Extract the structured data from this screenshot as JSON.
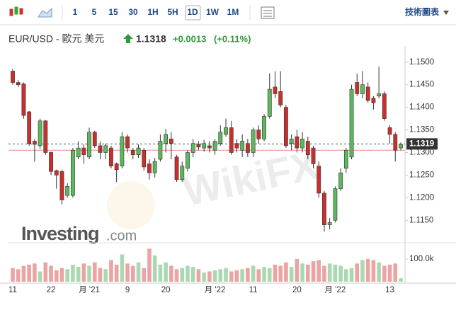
{
  "toolbar": {
    "intervals": [
      "1",
      "5",
      "15",
      "30",
      "1H",
      "5H",
      "1D",
      "1W",
      "1M"
    ],
    "selected": "1D",
    "right": "技術圖表"
  },
  "header": {
    "symbol": "EUR/USD - 歐元 美元",
    "price": "1.1318",
    "change": "+0.0013",
    "change_pct": "(+0.11%)"
  },
  "watermarks": {
    "logo": "Investing",
    "logo_suffix": ".com",
    "wikifx": "WikiFX"
  },
  "chart_data": {
    "type": "candlestick",
    "categories": [
      "11",
      null,
      null,
      null,
      null,
      null,
      null,
      "22",
      null,
      null,
      null,
      null,
      null,
      null,
      "月 '21",
      null,
      null,
      null,
      null,
      null,
      null,
      "9",
      null,
      null,
      null,
      null,
      null,
      null,
      "20",
      null,
      null,
      null,
      null,
      null,
      null,
      null,
      null,
      "月 '22",
      null,
      null,
      null,
      null,
      null,
      null,
      "11",
      null,
      null,
      null,
      null,
      null,
      null,
      null,
      "20",
      null,
      null,
      null,
      null,
      null,
      null,
      "月 '22",
      null,
      null,
      null,
      null,
      null,
      null,
      null,
      null,
      null,
      "13",
      null,
      null
    ],
    "open": [
      1.148,
      1.1455,
      1.1452,
      1.139,
      1.1325,
      1.1315,
      1.137,
      1.13,
      1.126,
      1.1258,
      1.1205,
      1.1205,
      1.129,
      1.131,
      1.129,
      1.1345,
      1.1315,
      1.13,
      1.131,
      1.1275,
      1.127,
      1.1335,
      1.1305,
      1.1295,
      1.1305,
      1.1275,
      1.1255,
      1.1285,
      1.132,
      1.133,
      1.129,
      1.124,
      1.1265,
      1.13,
      1.1318,
      1.131,
      1.1315,
      1.1305,
      1.132,
      1.134,
      1.1355,
      1.132,
      1.1305,
      1.132,
      1.13,
      1.135,
      1.133,
      1.138,
      1.1445,
      1.1435,
      1.14,
      1.132,
      1.1335,
      1.131,
      1.1325,
      1.131,
      1.127,
      1.121,
      1.114,
      1.115,
      1.122,
      1.1265,
      1.129,
      1.1455,
      1.143,
      1.1445,
      1.142,
      1.1425,
      1.143,
      1.1355,
      1.134,
      1.131
    ],
    "high": [
      1.1485,
      1.146,
      1.1455,
      1.1392,
      1.133,
      1.1375,
      1.1372,
      1.1302,
      1.1262,
      1.1262,
      1.1232,
      1.131,
      1.1325,
      1.1318,
      1.1355,
      1.1348,
      1.1325,
      1.132,
      1.1315,
      1.1278,
      1.1345,
      1.134,
      1.131,
      1.1318,
      1.131,
      1.1285,
      1.1288,
      1.134,
      1.1352,
      1.1345,
      1.1295,
      1.128,
      1.1305,
      1.133,
      1.1325,
      1.1328,
      1.1325,
      1.133,
      1.136,
      1.1375,
      1.137,
      1.133,
      1.134,
      1.133,
      1.1355,
      1.136,
      1.1385,
      1.1475,
      1.148,
      1.148,
      1.1405,
      1.134,
      1.135,
      1.1345,
      1.1335,
      1.1315,
      1.128,
      1.1215,
      1.1155,
      1.1225,
      1.1265,
      1.131,
      1.145,
      1.1475,
      1.148,
      1.1455,
      1.1425,
      1.149,
      1.1435,
      1.136,
      1.1345,
      1.1322
    ],
    "low": [
      1.145,
      1.1445,
      1.1375,
      1.1315,
      1.128,
      1.1308,
      1.1295,
      1.125,
      1.122,
      1.1185,
      1.12,
      1.12,
      1.1285,
      1.1275,
      1.1285,
      1.131,
      1.1285,
      1.1285,
      1.1265,
      1.1235,
      1.1265,
      1.13,
      1.1285,
      1.1288,
      1.126,
      1.124,
      1.1245,
      1.128,
      1.13,
      1.1285,
      1.1235,
      1.1235,
      1.1258,
      1.129,
      1.1305,
      1.1302,
      1.13,
      1.1295,
      1.1315,
      1.1335,
      1.1295,
      1.13,
      1.129,
      1.129,
      1.129,
      1.132,
      1.1325,
      1.1375,
      1.142,
      1.14,
      1.131,
      1.1305,
      1.13,
      1.13,
      1.1285,
      1.1265,
      1.12,
      1.1125,
      1.113,
      1.1145,
      1.1215,
      1.1255,
      1.1285,
      1.1425,
      1.142,
      1.141,
      1.1395,
      1.142,
      1.137,
      1.132,
      1.128,
      1.1305
    ],
    "close": [
      1.1455,
      1.145,
      1.1382,
      1.132,
      1.1318,
      1.137,
      1.13,
      1.1258,
      1.125,
      1.1195,
      1.1225,
      1.1305,
      1.131,
      1.1295,
      1.1345,
      1.1315,
      1.13,
      1.1315,
      1.127,
      1.1262,
      1.1335,
      1.131,
      1.1295,
      1.131,
      1.1268,
      1.1255,
      1.128,
      1.1325,
      1.134,
      1.132,
      1.124,
      1.127,
      1.13,
      1.132,
      1.1312,
      1.132,
      1.131,
      1.1325,
      1.1345,
      1.1355,
      1.13,
      1.131,
      1.1325,
      1.13,
      1.135,
      1.133,
      1.138,
      1.144,
      1.143,
      1.1405,
      1.1315,
      1.133,
      1.131,
      1.133,
      1.1295,
      1.1275,
      1.121,
      1.114,
      1.1145,
      1.122,
      1.1255,
      1.1305,
      1.144,
      1.143,
      1.145,
      1.1415,
      1.141,
      1.143,
      1.1375,
      1.134,
      1.1305,
      1.1318
    ],
    "volume": [
      60000,
      55000,
      70000,
      75000,
      80000,
      45000,
      85000,
      70000,
      50000,
      60000,
      55000,
      75000,
      65000,
      80000,
      70000,
      85000,
      60000,
      55000,
      95000,
      75000,
      120000,
      80000,
      70000,
      85000,
      60000,
      145000,
      115000,
      75000,
      85000,
      70000,
      55000,
      60000,
      70000,
      65000,
      55000,
      40000,
      45000,
      50000,
      55000,
      60000,
      45000,
      50000,
      55000,
      60000,
      70000,
      55000,
      65000,
      60000,
      75000,
      70000,
      85000,
      65000,
      100000,
      80000,
      75000,
      90000,
      95000,
      70000,
      80000,
      75000,
      70000,
      55000,
      60000,
      80000,
      95000,
      100000,
      95000,
      85000,
      70000,
      75000,
      80000,
      15000
    ],
    "ylim": [
      1.1105,
      1.152
    ],
    "yticks": [
      {
        "value": 1.115,
        "label": "1.1150"
      },
      {
        "value": 1.12,
        "label": "1.1200"
      },
      {
        "value": 1.125,
        "label": "1.1250"
      },
      {
        "value": 1.13,
        "label": "1.1300"
      },
      {
        "value": 1.135,
        "label": "1.1350"
      },
      {
        "value": 1.14,
        "label": "1.1400"
      },
      {
        "value": 1.145,
        "label": "1.1450"
      },
      {
        "value": 1.15,
        "label": "1.1500"
      }
    ],
    "volume_ylim": [
      0,
      165000
    ],
    "volume_yticks": [
      {
        "value": 100000,
        "label": "100.0k"
      }
    ],
    "last_price": {
      "value": 1.1319,
      "label": "1.1319"
    },
    "reference_line": 1.1305,
    "up_color": "#5cb85c",
    "down_color": "#c9302c",
    "up_volume_color": "#a9d8b3",
    "down_volume_color": "#eba3a3"
  }
}
